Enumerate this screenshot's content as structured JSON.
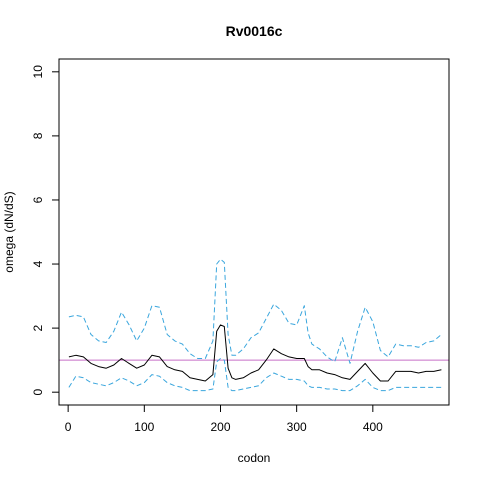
{
  "chart_data": {
    "type": "line",
    "title": "Rv0016c",
    "xlabel": "codon",
    "ylabel": "omega (dN/dS)",
    "xlim": [
      -12,
      500
    ],
    "ylim": [
      -0.4,
      10.4
    ],
    "xticks": [
      0,
      100,
      200,
      300,
      400
    ],
    "yticks": [
      0,
      2,
      4,
      6,
      8,
      10
    ],
    "grid": false,
    "reference_line": {
      "y": 1,
      "color": "#c86fc8"
    },
    "colors": {
      "estimate": "#000000",
      "interval": "#3aa6dd"
    },
    "x": [
      1,
      10,
      20,
      30,
      40,
      50,
      60,
      70,
      80,
      90,
      100,
      110,
      120,
      130,
      140,
      150,
      160,
      170,
      180,
      190,
      195,
      200,
      205,
      210,
      215,
      220,
      230,
      240,
      250,
      260,
      270,
      280,
      290,
      300,
      310,
      315,
      320,
      330,
      340,
      350,
      360,
      370,
      380,
      390,
      400,
      410,
      420,
      430,
      440,
      450,
      460,
      470,
      480,
      490
    ],
    "series": [
      {
        "values": [
          1.1,
          1.15,
          1.1,
          0.9,
          0.8,
          0.75,
          0.85,
          1.05,
          0.9,
          0.75,
          0.85,
          1.15,
          1.1,
          0.8,
          0.7,
          0.65,
          0.45,
          0.4,
          0.35,
          0.55,
          1.9,
          2.1,
          2.05,
          0.75,
          0.45,
          0.4,
          0.45,
          0.6,
          0.7,
          1.0,
          1.35,
          1.2,
          1.1,
          1.05,
          1.05,
          0.8,
          0.7,
          0.7,
          0.6,
          0.55,
          0.45,
          0.4,
          0.65,
          0.9,
          0.6,
          0.35,
          0.35,
          0.65,
          0.65,
          0.65,
          0.6,
          0.65,
          0.65,
          0.7
        ]
      },
      {
        "values": [
          2.35,
          2.4,
          2.35,
          1.8,
          1.6,
          1.55,
          1.9,
          2.5,
          2.1,
          1.6,
          2.0,
          2.7,
          2.65,
          1.8,
          1.6,
          1.5,
          1.2,
          1.05,
          1.05,
          1.6,
          4.0,
          4.15,
          4.05,
          1.8,
          1.15,
          1.15,
          1.35,
          1.7,
          1.85,
          2.3,
          2.75,
          2.55,
          2.15,
          2.1,
          2.7,
          1.85,
          1.5,
          1.35,
          1.1,
          0.95,
          1.7,
          0.9,
          1.9,
          2.65,
          2.2,
          1.3,
          1.1,
          1.5,
          1.45,
          1.45,
          1.4,
          1.55,
          1.6,
          1.8
        ]
      },
      {
        "values": [
          0.15,
          0.5,
          0.45,
          0.3,
          0.25,
          0.2,
          0.3,
          0.45,
          0.35,
          0.2,
          0.3,
          0.55,
          0.5,
          0.3,
          0.2,
          0.15,
          0.05,
          0.05,
          0.05,
          0.1,
          0.95,
          1.05,
          1.0,
          0.15,
          0.05,
          0.05,
          0.1,
          0.15,
          0.2,
          0.45,
          0.6,
          0.5,
          0.4,
          0.4,
          0.35,
          0.2,
          0.15,
          0.15,
          0.1,
          0.1,
          0.05,
          0.05,
          0.2,
          0.4,
          0.15,
          0.05,
          0.05,
          0.15,
          0.15,
          0.15,
          0.15,
          0.15,
          0.15,
          0.15
        ]
      }
    ]
  }
}
